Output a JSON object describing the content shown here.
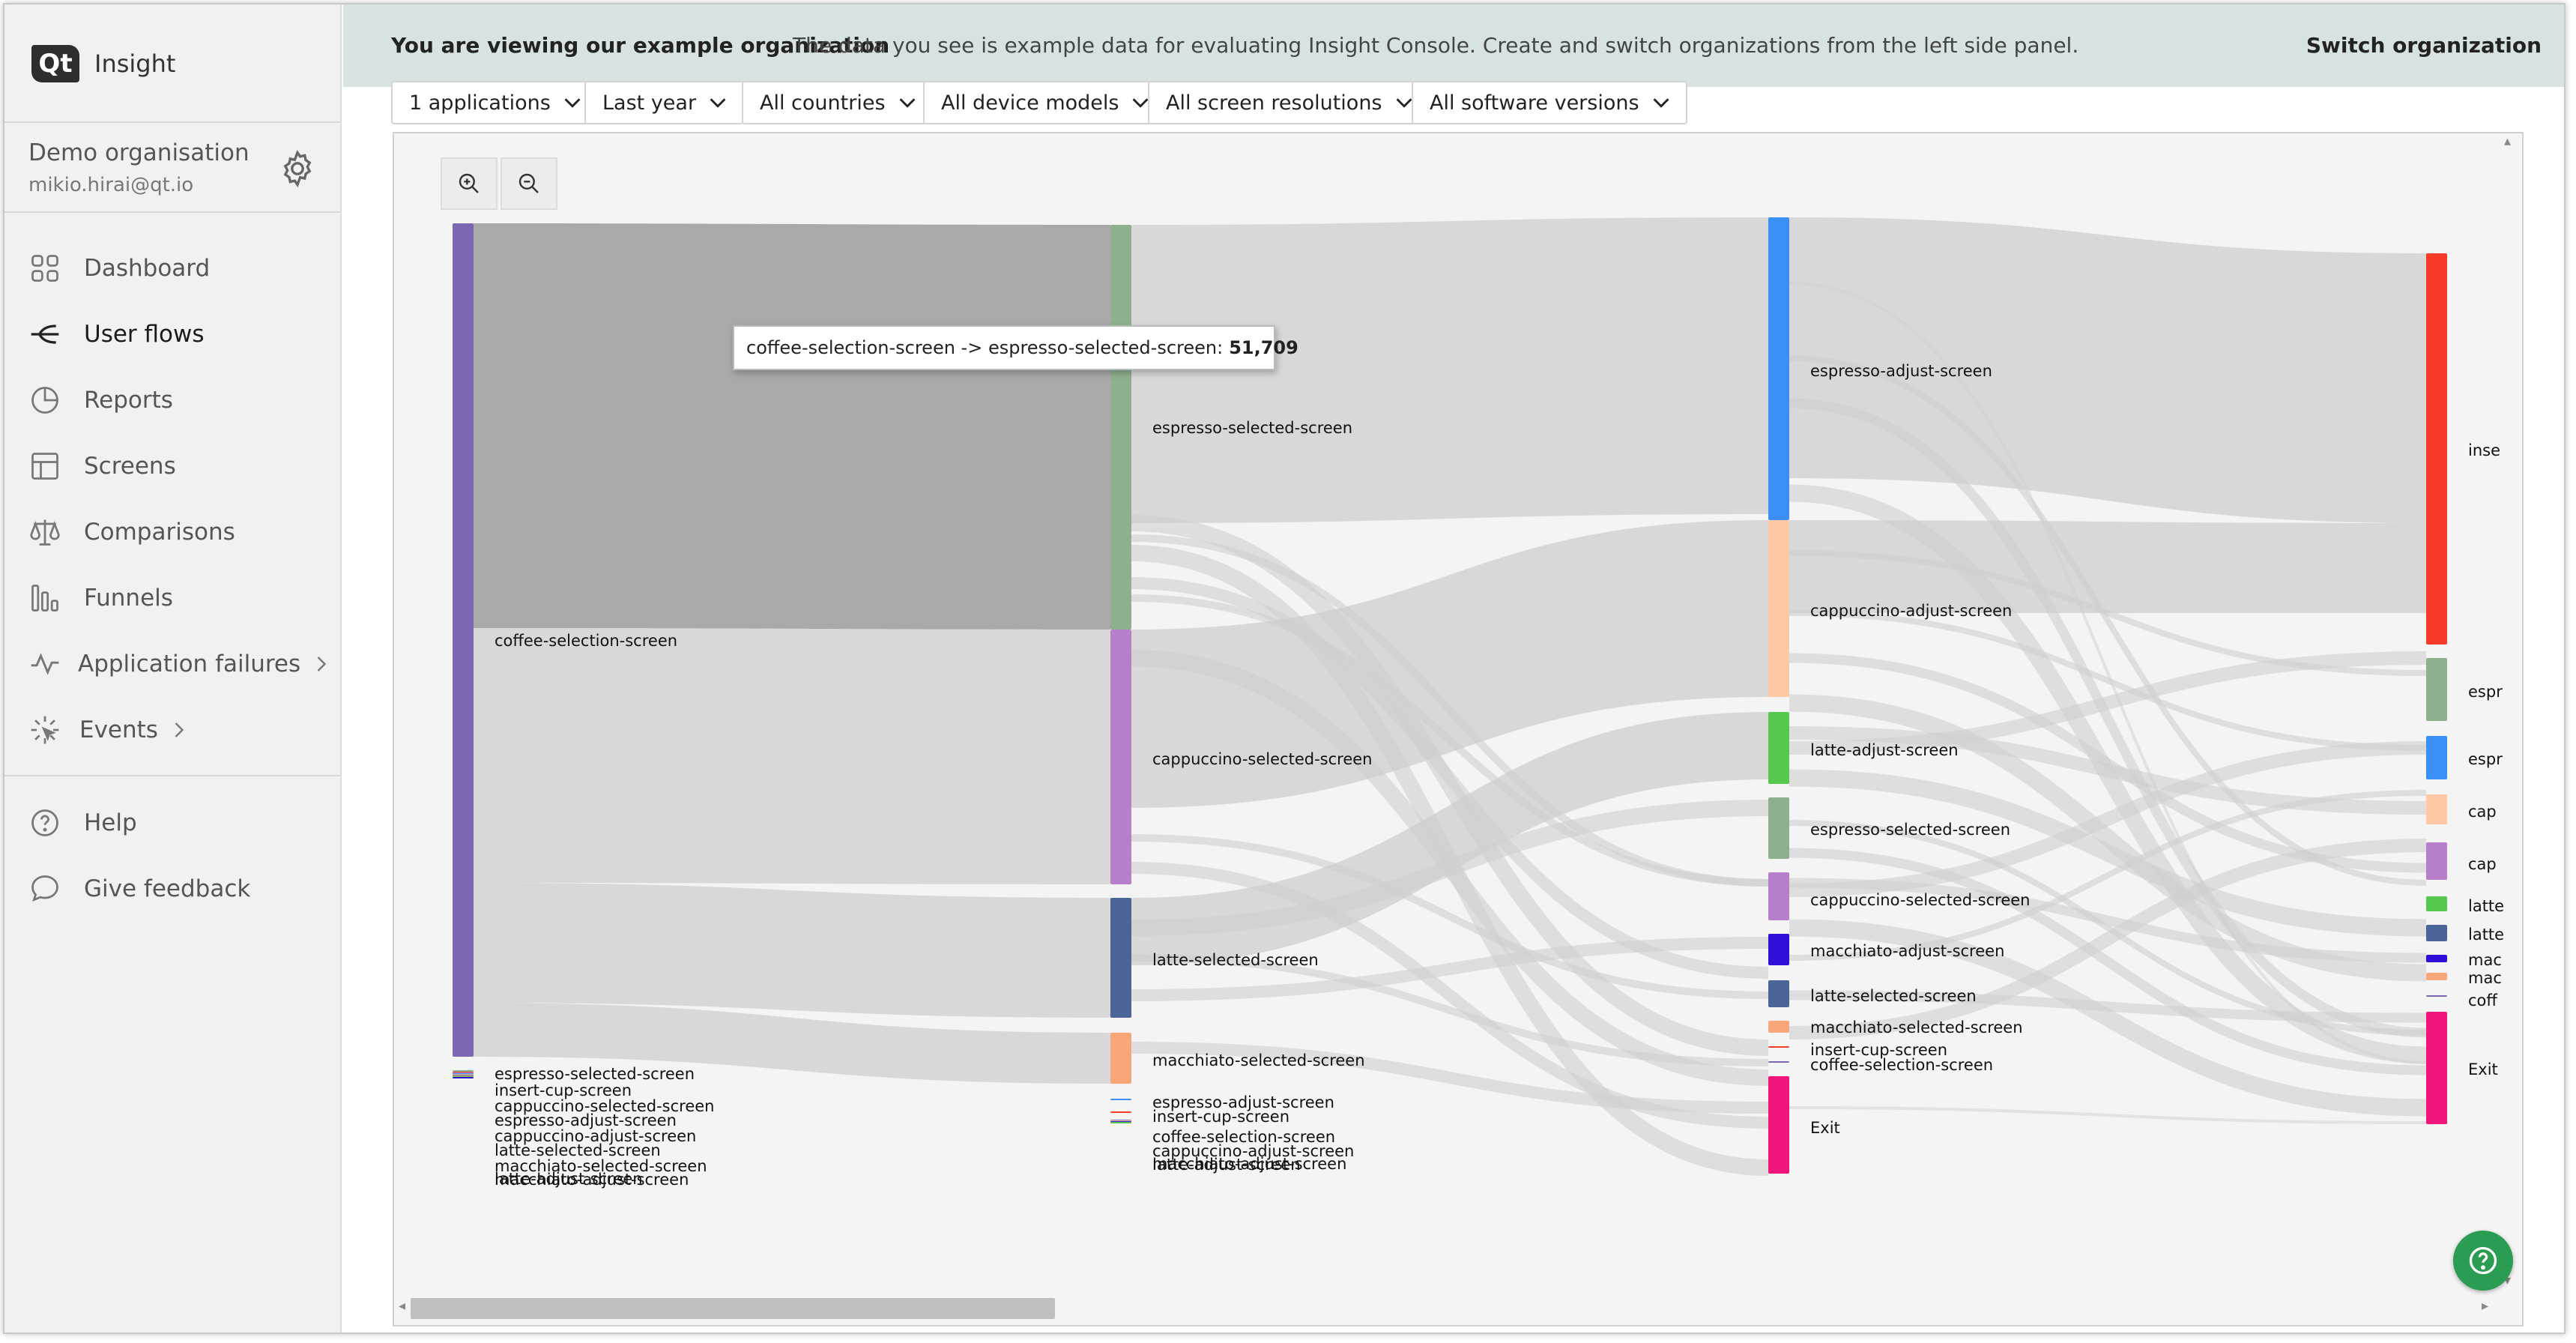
{
  "app": {
    "logo_text": "Qt",
    "name": "Insight"
  },
  "organisation": {
    "name": "Demo organisation",
    "email": "mikio.hirai@qt.io"
  },
  "nav": {
    "main": [
      {
        "label": "Dashboard",
        "icon": "dashboard-icon"
      },
      {
        "label": "User flows",
        "icon": "user-flows-icon",
        "active": true
      },
      {
        "label": "Reports",
        "icon": "reports-icon"
      },
      {
        "label": "Screens",
        "icon": "screens-icon"
      },
      {
        "label": "Comparisons",
        "icon": "comparisons-icon"
      },
      {
        "label": "Funnels",
        "icon": "funnels-icon"
      },
      {
        "label": "Application failures",
        "icon": "application-failures-icon",
        "expandable": true
      },
      {
        "label": "Events",
        "icon": "events-icon",
        "expandable": true
      }
    ],
    "footer": [
      {
        "label": "Help",
        "icon": "help-icon"
      },
      {
        "label": "Give feedback",
        "icon": "feedback-icon"
      }
    ]
  },
  "banner": {
    "title": "You are viewing our example organization",
    "text": "The data you see is example data for evaluating Insight Console. Create and switch organizations from the left side panel.",
    "action": "Switch organization"
  },
  "filters": [
    "1 applications",
    "Last year",
    "All countries",
    "All device models",
    "All screen resolutions",
    "All software versions"
  ],
  "tooltip": {
    "text": "coffee-selection-screen -> espresso-selected-screen:",
    "value": "51,709"
  },
  "colors": {
    "coffee-selection-screen": "#7b68b1",
    "espresso-selected-screen": "#8fb08f",
    "cappuccino-selected-screen": "#b77fc9",
    "latte-selected-screen": "#4a6598",
    "macchiato-selected-screen": "#f8a77b",
    "espresso-adjust-screen": "#3b8ef5",
    "cappuccino-adjust-screen": "#fdc9a4",
    "latte-adjust-screen": "#55c84d",
    "macchiato-adjust-screen": "#2e10d8",
    "insert-cup-screen": "#f53a2a",
    "Exit": "#f0157a",
    "link": "#cfcfcf",
    "highlight": "#a9a9a9",
    "help-button": "#2a9d53"
  },
  "sankey": {
    "columns": [
      {
        "nodes": [
          {
            "id": "coffee-selection-screen",
            "label": "coffee-selection-screen"
          },
          {
            "id": "espresso-selected-screen",
            "label": "espresso-selected-screen"
          },
          {
            "id": "insert-cup-screen",
            "label": "insert-cup-screen"
          },
          {
            "id": "cappuccino-selected-screen",
            "label": "cappuccino-selected-screen"
          },
          {
            "id": "espresso-adjust-screen",
            "label": "espresso-adjust-screen"
          },
          {
            "id": "cappuccino-adjust-screen",
            "label": "cappuccino-adjust-screen"
          },
          {
            "id": "latte-selected-screen",
            "label": "latte-selected-screen"
          },
          {
            "id": "macchiato-selected-screen",
            "label": "macchiato-selected-screen"
          },
          {
            "id": "latte-adjust-screen",
            "label": "latte-adjust-screen"
          },
          {
            "id": "macchiato-adjust-screen",
            "label": "macchiato-adjust-screen"
          }
        ]
      },
      {
        "nodes": [
          {
            "id": "espresso-selected-screen",
            "label": "espresso-selected-screen"
          },
          {
            "id": "cappuccino-selected-screen",
            "label": "cappuccino-selected-screen"
          },
          {
            "id": "latte-selected-screen",
            "label": "latte-selected-screen"
          },
          {
            "id": "macchiato-selected-screen",
            "label": "macchiato-selected-screen"
          },
          {
            "id": "espresso-adjust-screen",
            "label": "espresso-adjust-screen"
          },
          {
            "id": "insert-cup-screen",
            "label": "insert-cup-screen"
          },
          {
            "id": "coffee-selection-screen",
            "label": "coffee-selection-screen"
          },
          {
            "id": "cappuccino-adjust-screen",
            "label": "cappuccino-adjust-screen"
          },
          {
            "id": "macchiato-adjust-screen",
            "label": "macchiato-adjust-screen"
          },
          {
            "id": "latte-adjust-screen",
            "label": "latte-adjust-screen"
          }
        ]
      },
      {
        "nodes": [
          {
            "id": "espresso-adjust-screen",
            "label": "espresso-adjust-screen"
          },
          {
            "id": "cappuccino-adjust-screen",
            "label": "cappuccino-adjust-screen"
          },
          {
            "id": "latte-adjust-screen",
            "label": "latte-adjust-screen"
          },
          {
            "id": "espresso-selected-screen",
            "label": "espresso-selected-screen"
          },
          {
            "id": "cappuccino-selected-screen",
            "label": "cappuccino-selected-screen"
          },
          {
            "id": "macchiato-adjust-screen",
            "label": "macchiato-adjust-screen"
          },
          {
            "id": "latte-selected-screen",
            "label": "latte-selected-screen"
          },
          {
            "id": "macchiato-selected-screen",
            "label": "macchiato-selected-screen"
          },
          {
            "id": "insert-cup-screen",
            "label": "insert-cup-screen"
          },
          {
            "id": "coffee-selection-screen",
            "label": "coffee-selection-screen"
          },
          {
            "id": "Exit",
            "label": "Exit"
          }
        ]
      },
      {
        "nodes": [
          {
            "id": "insert-cup-screen",
            "label": "inse"
          },
          {
            "id": "espresso-selected-screen",
            "label": "espr"
          },
          {
            "id": "espresso-adjust-screen",
            "label": "espr"
          },
          {
            "id": "cappuccino-adjust-screen",
            "label": "cap"
          },
          {
            "id": "cappuccino-selected-screen",
            "label": "cap"
          },
          {
            "id": "latte-adjust-screen",
            "label": "latte"
          },
          {
            "id": "latte-selected-screen",
            "label": "latte"
          },
          {
            "id": "macchiato-adjust-screen",
            "label": "mac"
          },
          {
            "id": "macchiato-selected-screen",
            "label": "mac"
          },
          {
            "id": "coffee-selection-screen",
            "label": "coff"
          },
          {
            "id": "Exit",
            "label": "Exit"
          }
        ]
      }
    ]
  }
}
